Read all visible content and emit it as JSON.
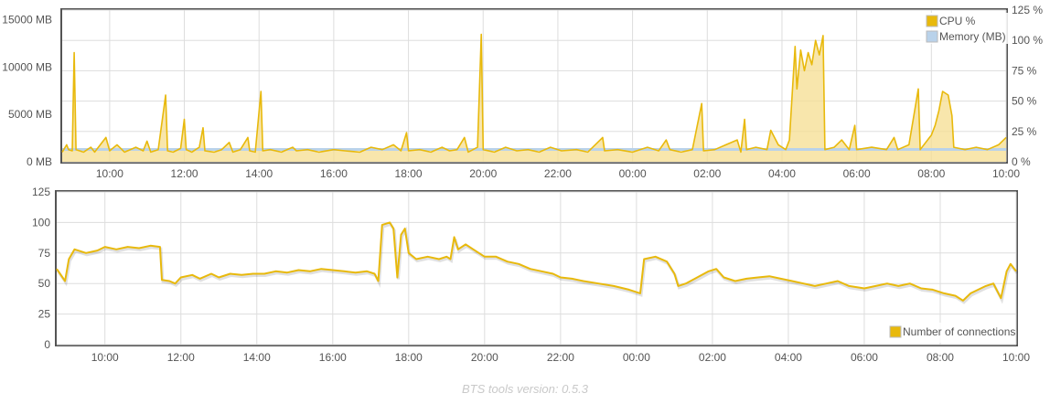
{
  "colors": {
    "cpu": "#e8b90c",
    "cpu_fill": "#f6dd90",
    "memory": "#b9d2ea",
    "connections": "#e8b90c",
    "grid": "#dddddd",
    "frame": "#545454"
  },
  "footer": {
    "version_text": "BTS tools version: 0.5.3"
  },
  "chart_data": [
    {
      "type": "area",
      "x_ticks": [
        "10:00",
        "12:00",
        "14:00",
        "16:00",
        "18:00",
        "20:00",
        "22:00",
        "00:00",
        "02:00",
        "04:00",
        "06:00",
        "08:00",
        "10:00"
      ],
      "x_range_hours": [
        8.73,
        34.0
      ],
      "y_left": {
        "ticks": [
          "0 MB",
          "5000 MB",
          "10000 MB",
          "15000 MB"
        ],
        "range": [
          0,
          16000
        ]
      },
      "y_right": {
        "ticks": [
          "0 %",
          "25 %",
          "50 %",
          "75 %",
          "100 %",
          "125 %"
        ],
        "range": [
          0,
          125
        ]
      },
      "grid": true,
      "legend_position": "top-right",
      "series": [
        {
          "name": "CPU %",
          "axis": "right",
          "points": [
            [
              8.73,
              8
            ],
            [
              8.85,
              14
            ],
            [
              8.9,
              10
            ],
            [
              9.0,
              9
            ],
            [
              9.05,
              90
            ],
            [
              9.1,
              10
            ],
            [
              9.3,
              8
            ],
            [
              9.5,
              12
            ],
            [
              9.6,
              8
            ],
            [
              9.9,
              20
            ],
            [
              10.0,
              9
            ],
            [
              10.2,
              14
            ],
            [
              10.4,
              8
            ],
            [
              10.7,
              12
            ],
            [
              10.9,
              9
            ],
            [
              11.0,
              17
            ],
            [
              11.1,
              8
            ],
            [
              11.3,
              10
            ],
            [
              11.5,
              55
            ],
            [
              11.55,
              9
            ],
            [
              11.7,
              8
            ],
            [
              11.9,
              11
            ],
            [
              12.0,
              35
            ],
            [
              12.05,
              10
            ],
            [
              12.2,
              8
            ],
            [
              12.4,
              12
            ],
            [
              12.5,
              28
            ],
            [
              12.55,
              9
            ],
            [
              12.8,
              8
            ],
            [
              13.0,
              10
            ],
            [
              13.2,
              16
            ],
            [
              13.3,
              8
            ],
            [
              13.5,
              10
            ],
            [
              13.7,
              20
            ],
            [
              13.75,
              9
            ],
            [
              13.9,
              8
            ],
            [
              14.05,
              58
            ],
            [
              14.1,
              9
            ],
            [
              14.3,
              10
            ],
            [
              14.6,
              8
            ],
            [
              14.9,
              12
            ],
            [
              15.0,
              9
            ],
            [
              15.3,
              10
            ],
            [
              15.6,
              8
            ],
            [
              16.0,
              10
            ],
            [
              16.3,
              9
            ],
            [
              16.7,
              8
            ],
            [
              17.0,
              12
            ],
            [
              17.3,
              10
            ],
            [
              17.6,
              14
            ],
            [
              17.8,
              9
            ],
            [
              17.95,
              24
            ],
            [
              18.0,
              9
            ],
            [
              18.3,
              10
            ],
            [
              18.6,
              8
            ],
            [
              18.9,
              12
            ],
            [
              19.1,
              9
            ],
            [
              19.3,
              10
            ],
            [
              19.5,
              20
            ],
            [
              19.6,
              8
            ],
            [
              19.85,
              12
            ],
            [
              19.95,
              105
            ],
            [
              20.0,
              10
            ],
            [
              20.3,
              8
            ],
            [
              20.6,
              12
            ],
            [
              20.9,
              9
            ],
            [
              21.2,
              10
            ],
            [
              21.5,
              8
            ],
            [
              21.8,
              12
            ],
            [
              22.1,
              9
            ],
            [
              22.5,
              10
            ],
            [
              22.8,
              8
            ],
            [
              23.2,
              20
            ],
            [
              23.25,
              9
            ],
            [
              23.6,
              10
            ],
            [
              24.0,
              8
            ],
            [
              24.4,
              12
            ],
            [
              24.7,
              9
            ],
            [
              24.9,
              18
            ],
            [
              25.0,
              10
            ],
            [
              25.3,
              8
            ],
            [
              25.6,
              10
            ],
            [
              25.85,
              48
            ],
            [
              25.9,
              9
            ],
            [
              26.2,
              10
            ],
            [
              26.5,
              14
            ],
            [
              26.8,
              18
            ],
            [
              26.9,
              8
            ],
            [
              27.0,
              35
            ],
            [
              27.05,
              10
            ],
            [
              27.3,
              12
            ],
            [
              27.6,
              10
            ],
            [
              27.7,
              26
            ],
            [
              27.9,
              14
            ],
            [
              28.1,
              10
            ],
            [
              28.2,
              18
            ],
            [
              28.35,
              95
            ],
            [
              28.4,
              60
            ],
            [
              28.5,
              92
            ],
            [
              28.6,
              75
            ],
            [
              28.7,
              90
            ],
            [
              28.8,
              80
            ],
            [
              28.9,
              100
            ],
            [
              29.0,
              88
            ],
            [
              29.1,
              104
            ],
            [
              29.15,
              10
            ],
            [
              29.4,
              12
            ],
            [
              29.6,
              18
            ],
            [
              29.8,
              10
            ],
            [
              29.95,
              30
            ],
            [
              30.0,
              10
            ],
            [
              30.4,
              12
            ],
            [
              30.8,
              10
            ],
            [
              31.0,
              20
            ],
            [
              31.1,
              10
            ],
            [
              31.4,
              14
            ],
            [
              31.65,
              60
            ],
            [
              31.7,
              10
            ],
            [
              32.0,
              22
            ],
            [
              32.1,
              30
            ],
            [
              32.2,
              42
            ],
            [
              32.3,
              58
            ],
            [
              32.45,
              55
            ],
            [
              32.55,
              38
            ],
            [
              32.6,
              12
            ],
            [
              32.9,
              10
            ],
            [
              33.2,
              12
            ],
            [
              33.5,
              10
            ],
            [
              33.8,
              14
            ],
            [
              34.0,
              20
            ]
          ]
        },
        {
          "name": "Memory (MB)",
          "axis": "left",
          "points": [
            [
              8.73,
              1300
            ],
            [
              34.0,
              1300
            ]
          ]
        }
      ]
    },
    {
      "type": "line",
      "x_ticks": [
        "10:00",
        "12:00",
        "14:00",
        "16:00",
        "18:00",
        "20:00",
        "22:00",
        "00:00",
        "02:00",
        "04:00",
        "06:00",
        "08:00",
        "10:00"
      ],
      "x_range_hours": [
        8.73,
        34.0
      ],
      "y": {
        "ticks": [
          "0",
          "25",
          "50",
          "75",
          "100",
          "125"
        ],
        "range": [
          0,
          125
        ]
      },
      "grid": true,
      "legend_position": "bottom-right",
      "series": [
        {
          "name": "Number of connections",
          "points": [
            [
              8.73,
              62
            ],
            [
              8.95,
              52
            ],
            [
              9.05,
              70
            ],
            [
              9.2,
              78
            ],
            [
              9.5,
              75
            ],
            [
              9.8,
              77
            ],
            [
              10.0,
              80
            ],
            [
              10.3,
              78
            ],
            [
              10.6,
              80
            ],
            [
              10.9,
              79
            ],
            [
              11.2,
              81
            ],
            [
              11.45,
              80
            ],
            [
              11.5,
              53
            ],
            [
              11.7,
              52
            ],
            [
              11.85,
              50
            ],
            [
              12.0,
              55
            ],
            [
              12.3,
              57
            ],
            [
              12.5,
              54
            ],
            [
              12.8,
              58
            ],
            [
              13.0,
              55
            ],
            [
              13.3,
              58
            ],
            [
              13.6,
              57
            ],
            [
              13.9,
              58
            ],
            [
              14.2,
              58
            ],
            [
              14.5,
              60
            ],
            [
              14.8,
              59
            ],
            [
              15.1,
              61
            ],
            [
              15.4,
              60
            ],
            [
              15.7,
              62
            ],
            [
              16.0,
              61
            ],
            [
              16.3,
              60
            ],
            [
              16.6,
              59
            ],
            [
              16.9,
              60
            ],
            [
              17.1,
              58
            ],
            [
              17.2,
              52
            ],
            [
              17.3,
              98
            ],
            [
              17.5,
              100
            ],
            [
              17.6,
              95
            ],
            [
              17.7,
              55
            ],
            [
              17.8,
              90
            ],
            [
              17.9,
              95
            ],
            [
              18.0,
              75
            ],
            [
              18.2,
              70
            ],
            [
              18.5,
              72
            ],
            [
              18.8,
              70
            ],
            [
              19.0,
              72
            ],
            [
              19.1,
              70
            ],
            [
              19.2,
              88
            ],
            [
              19.3,
              78
            ],
            [
              19.5,
              82
            ],
            [
              19.7,
              78
            ],
            [
              20.0,
              72
            ],
            [
              20.3,
              72
            ],
            [
              20.6,
              68
            ],
            [
              20.9,
              66
            ],
            [
              21.2,
              62
            ],
            [
              21.5,
              60
            ],
            [
              21.8,
              58
            ],
            [
              22.0,
              55
            ],
            [
              22.3,
              54
            ],
            [
              22.6,
              52
            ],
            [
              23.0,
              50
            ],
            [
              23.4,
              48
            ],
            [
              23.8,
              45
            ],
            [
              24.1,
              42
            ],
            [
              24.2,
              70
            ],
            [
              24.5,
              72
            ],
            [
              24.8,
              68
            ],
            [
              25.0,
              58
            ],
            [
              25.1,
              48
            ],
            [
              25.3,
              50
            ],
            [
              25.6,
              55
            ],
            [
              25.9,
              60
            ],
            [
              26.1,
              62
            ],
            [
              26.3,
              55
            ],
            [
              26.6,
              52
            ],
            [
              26.9,
              54
            ],
            [
              27.2,
              55
            ],
            [
              27.5,
              56
            ],
            [
              27.8,
              54
            ],
            [
              28.1,
              52
            ],
            [
              28.4,
              50
            ],
            [
              28.7,
              48
            ],
            [
              29.0,
              50
            ],
            [
              29.3,
              52
            ],
            [
              29.6,
              48
            ],
            [
              30.0,
              46
            ],
            [
              30.3,
              48
            ],
            [
              30.6,
              50
            ],
            [
              30.9,
              48
            ],
            [
              31.2,
              50
            ],
            [
              31.5,
              46
            ],
            [
              31.8,
              45
            ],
            [
              32.1,
              42
            ],
            [
              32.4,
              40
            ],
            [
              32.6,
              36
            ],
            [
              32.8,
              42
            ],
            [
              33.0,
              45
            ],
            [
              33.2,
              48
            ],
            [
              33.4,
              50
            ],
            [
              33.5,
              44
            ],
            [
              33.6,
              38
            ],
            [
              33.75,
              60
            ],
            [
              33.85,
              66
            ],
            [
              34.0,
              60
            ]
          ]
        }
      ]
    }
  ]
}
